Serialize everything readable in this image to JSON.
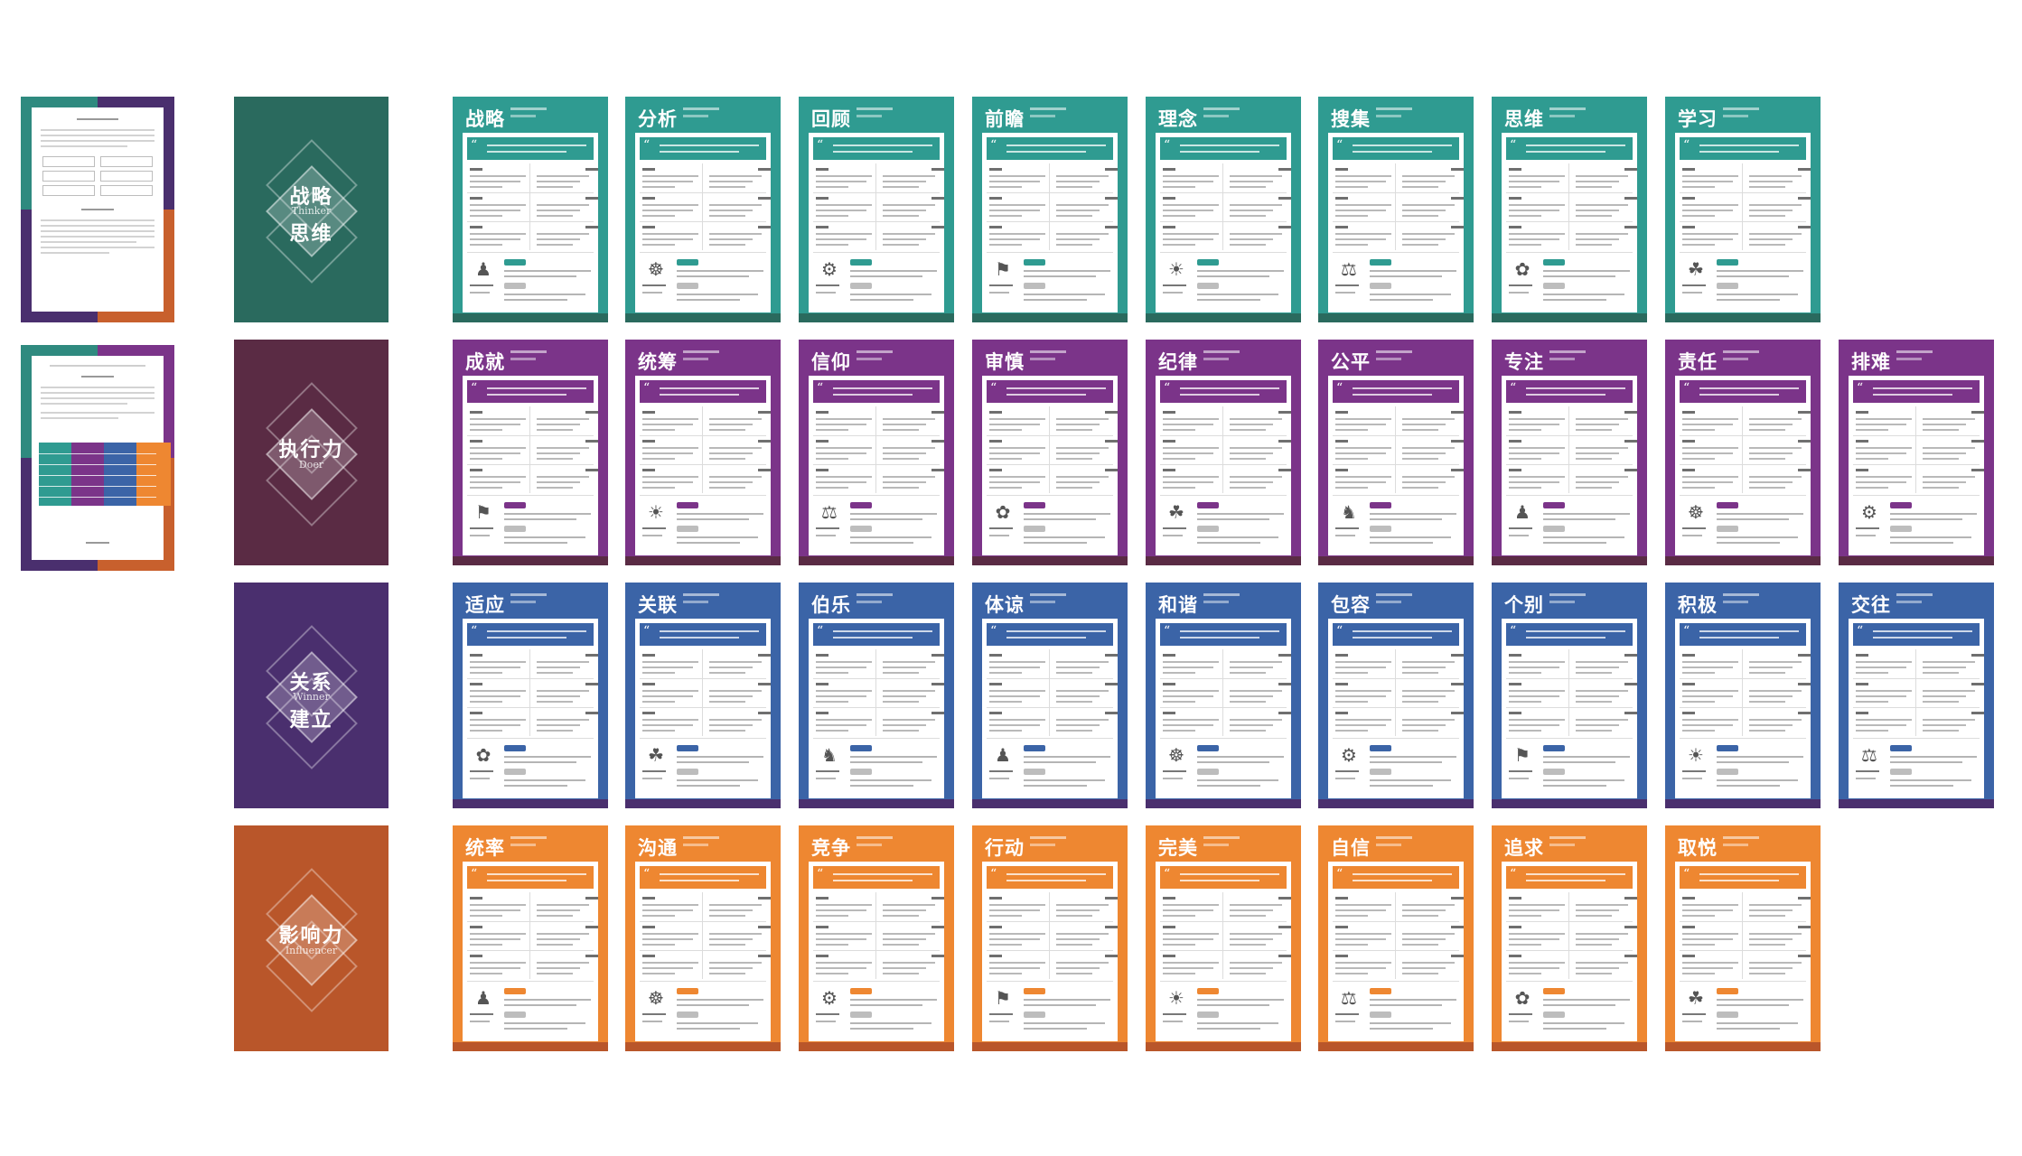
{
  "colors": {
    "teal": "#2f9b91",
    "teal_dark": "#2a6a5e",
    "purple": "#7b3489",
    "purple_dark": "#5a2b44",
    "blue": "#3b64a7",
    "blue_dark": "#4a2f6e",
    "orange": "#ee8731",
    "orange_dark": "#b9562a"
  },
  "covers": [
    {
      "line1": "战略",
      "sub": "Thinker",
      "line2": "思维",
      "theme": "teal"
    },
    {
      "line1": "执行力",
      "sub": "Doer",
      "line2": "",
      "theme": "purple"
    },
    {
      "line1": "关系",
      "sub": "Winner",
      "line2": "建立",
      "theme": "blue"
    },
    {
      "line1": "影响力",
      "sub": "Influencer",
      "line2": "",
      "theme": "orange"
    }
  ],
  "rows": [
    {
      "theme": "teal",
      "cards": [
        "战略",
        "分析",
        "回顾",
        "前瞻",
        "理念",
        "搜集",
        "思维",
        "学习"
      ]
    },
    {
      "theme": "purple",
      "cards": [
        "成就",
        "统筹",
        "信仰",
        "审慎",
        "纪律",
        "公平",
        "专注",
        "责任",
        "排难"
      ]
    },
    {
      "theme": "blue",
      "cards": [
        "适应",
        "关联",
        "伯乐",
        "体谅",
        "和谐",
        "包容",
        "个别",
        "积极",
        "交往"
      ]
    },
    {
      "theme": "orange",
      "cards": [
        "统率",
        "沟通",
        "竞争",
        "行动",
        "完美",
        "自信",
        "追求",
        "取悦"
      ]
    }
  ],
  "icons": [
    "♟",
    "☸",
    "⚙",
    "⚑",
    "☀",
    "⚖",
    "✿",
    "☘",
    "♞"
  ]
}
